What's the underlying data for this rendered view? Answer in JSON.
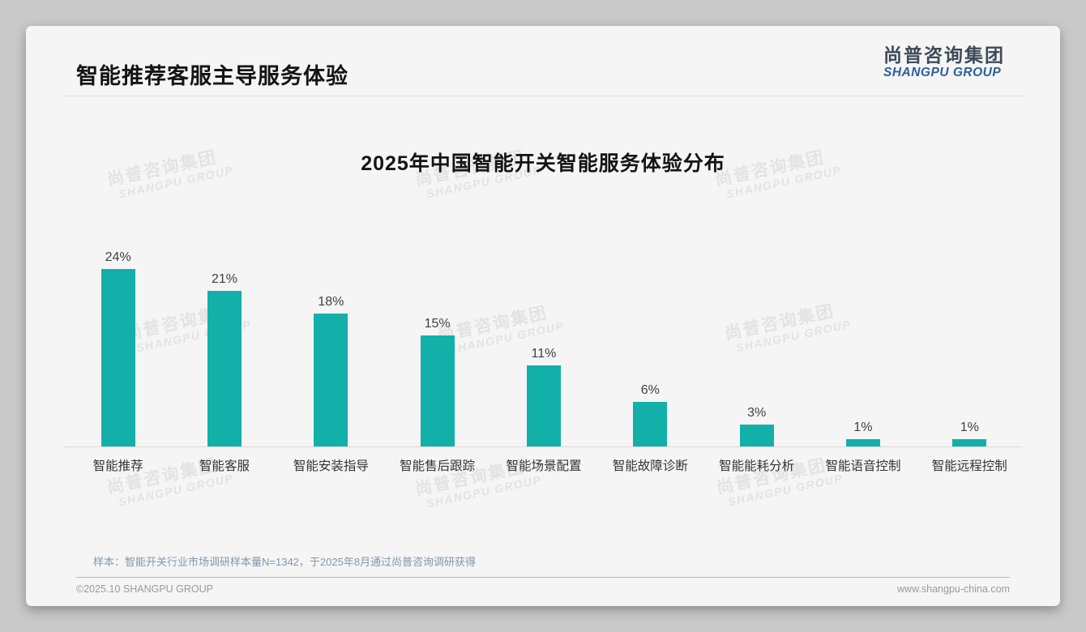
{
  "accent_color": "#12b0a8",
  "header": {
    "title": "智能推荐客服主导服务体验",
    "logo_cn": "尚普咨询集团",
    "logo_en": "SHANGPU GROUP"
  },
  "chart_data": {
    "type": "bar",
    "title": "2025年中国智能开关智能服务体验分布",
    "categories": [
      "智能推荐",
      "智能客服",
      "智能安装指导",
      "智能售后跟踪",
      "智能场景配置",
      "智能故障诊断",
      "智能能耗分析",
      "智能语音控制",
      "智能远程控制"
    ],
    "values": [
      24,
      21,
      18,
      15,
      11,
      6,
      3,
      1,
      1
    ],
    "unit": "%",
    "value_labels": [
      "24%",
      "21%",
      "18%",
      "15%",
      "11%",
      "6%",
      "3%",
      "1%",
      "1%"
    ],
    "xlabel": "",
    "ylabel": "",
    "ylim": [
      0,
      27
    ],
    "grid": false,
    "legend": false,
    "bar_color": "#12b0a8"
  },
  "note": "样本：智能开关行业市场调研样本量N=1342，于2025年8月通过尚普咨询调研获得",
  "footer": {
    "copyright": "©2025.10 SHANGPU GROUP",
    "website": "www.shangpu-china.com"
  },
  "watermark": {
    "line1": "尚普咨询集团",
    "line2": "SHANGPU GROUP"
  }
}
